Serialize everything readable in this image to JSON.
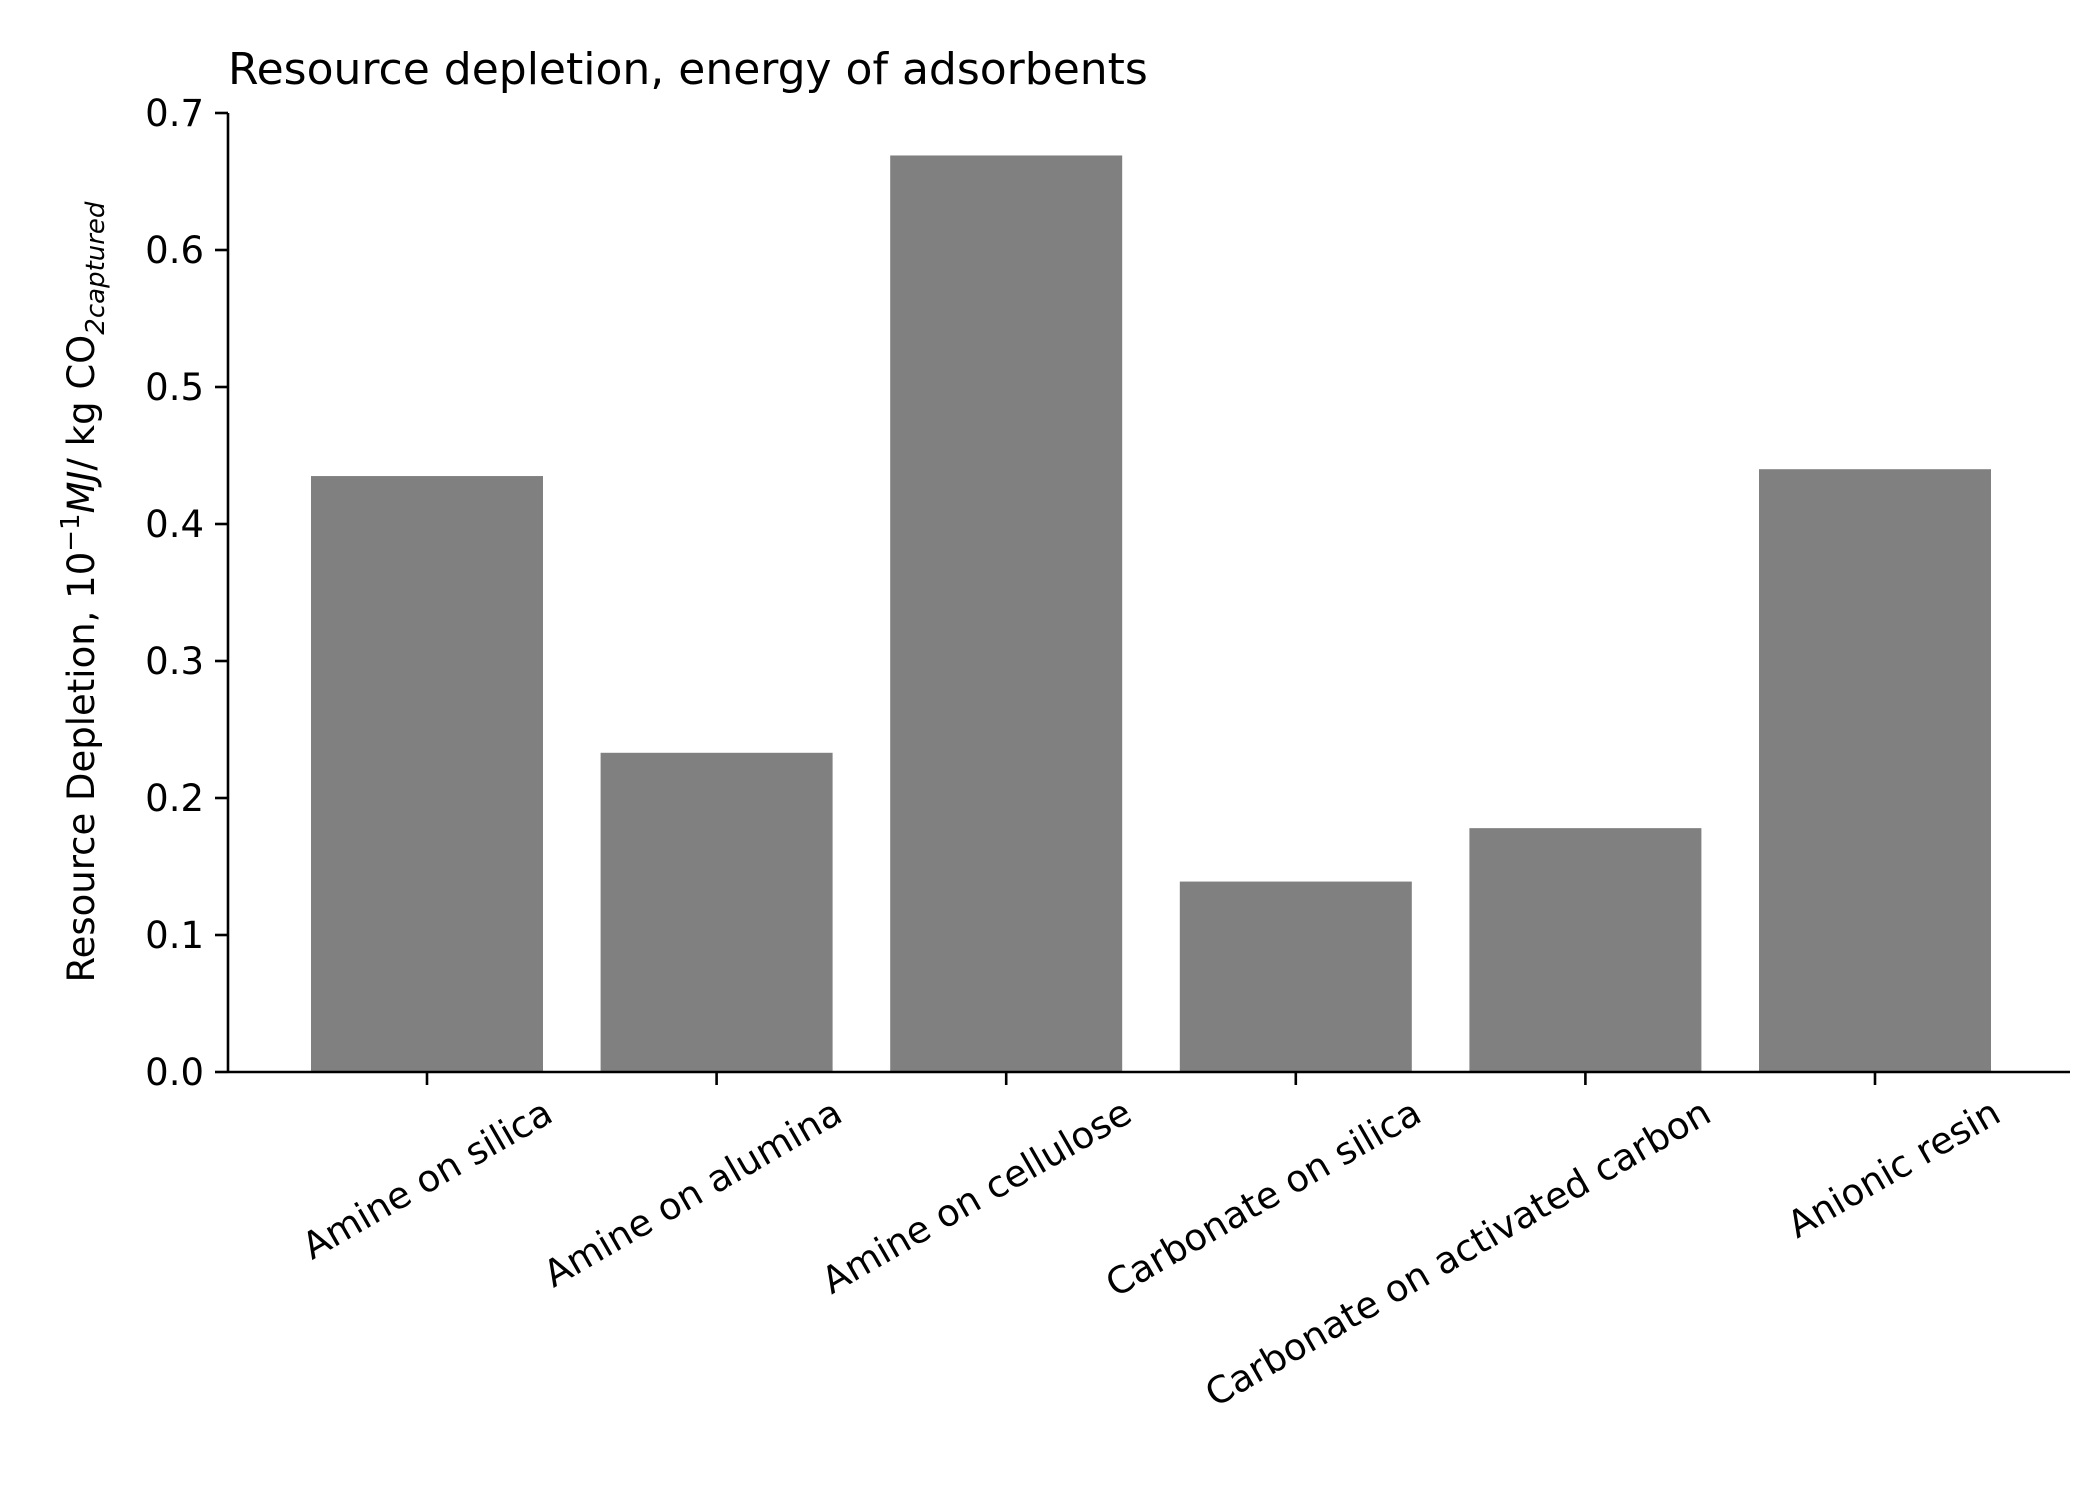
{
  "chart_data": {
    "type": "bar",
    "title": "Resource depletion, energy of adsorbents",
    "ylabel": {
      "prefix": "Resource Depletion, 10",
      "exp": "−1",
      "unit_italic": "MJ",
      "mid": "/ kg CO",
      "sub": "2captured"
    },
    "xlabel": "",
    "categories": [
      "Amine on silica",
      "Amine on alumina",
      "Amine on cellulose",
      "Carbonate on silica",
      "Carbonate on activated carbon",
      "Anionic resin"
    ],
    "values": [
      0.435,
      0.233,
      0.669,
      0.139,
      0.178,
      0.44
    ],
    "ylim": [
      0,
      0.7
    ],
    "yticks": [
      "0.0",
      "0.1",
      "0.2",
      "0.3",
      "0.4",
      "0.5",
      "0.6",
      "0.7"
    ],
    "grid": false,
    "bar_color": "#808080"
  }
}
